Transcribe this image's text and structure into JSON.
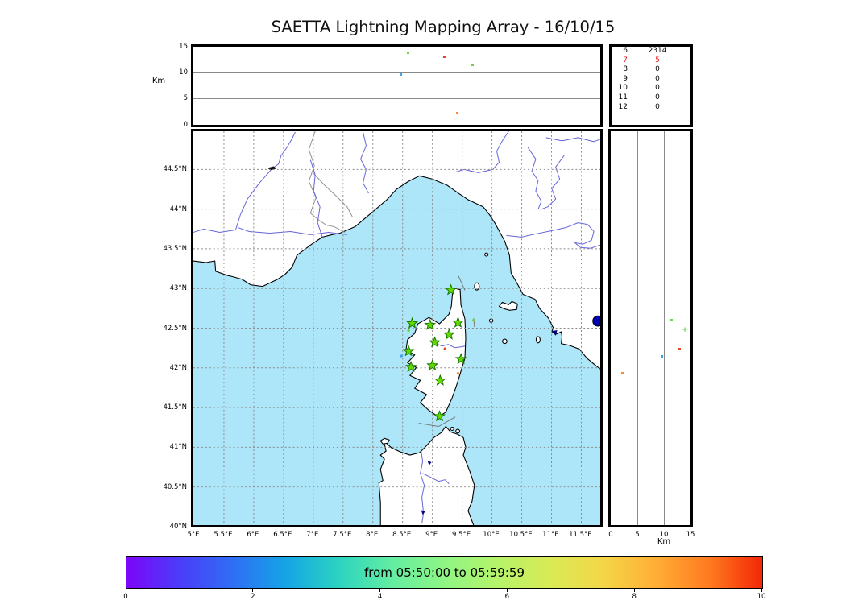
{
  "title": "SAETTA Lightning Mapping Array - 16/10/15",
  "alt_axis": {
    "label": "Km",
    "ticks": [
      0,
      5,
      10,
      15
    ],
    "max": 15,
    "gridlines": [
      5,
      10
    ]
  },
  "map_axes": {
    "lon_ticks": [
      {
        "v": 5,
        "label": "5°E"
      },
      {
        "v": 5.5,
        "label": "5.5°E"
      },
      {
        "v": 6,
        "label": "6°E"
      },
      {
        "v": 6.5,
        "label": "6.5°E"
      },
      {
        "v": 7,
        "label": "7°E"
      },
      {
        "v": 7.5,
        "label": "7.5°E"
      },
      {
        "v": 8,
        "label": "8°E"
      },
      {
        "v": 8.5,
        "label": "8.5°E"
      },
      {
        "v": 9,
        "label": "9°E"
      },
      {
        "v": 9.5,
        "label": "9.5°E"
      },
      {
        "v": 10,
        "label": "10°E"
      },
      {
        "v": 10.5,
        "label": "10.5°E"
      },
      {
        "v": 11,
        "label": "11°E"
      },
      {
        "v": 11.5,
        "label": "11.5°E"
      }
    ],
    "lat_ticks": [
      {
        "v": 40,
        "label": "40°N"
      },
      {
        "v": 40.5,
        "label": "40.5°N"
      },
      {
        "v": 41,
        "label": "41°N"
      },
      {
        "v": 41.5,
        "label": "41.5°N"
      },
      {
        "v": 42,
        "label": "42°N"
      },
      {
        "v": 42.5,
        "label": "42.5°N"
      },
      {
        "v": 43,
        "label": "43°N"
      },
      {
        "v": 43.5,
        "label": "43.5°N"
      },
      {
        "v": 44,
        "label": "44°N"
      },
      {
        "v": 44.5,
        "label": "44.5°N"
      }
    ],
    "lon_range": [
      5.0,
      11.82
    ],
    "lat_range": [
      40.02,
      44.98
    ]
  },
  "counts_panel": {
    "rows": [
      {
        "level": "6",
        "count": "2314",
        "color": "#000000"
      },
      {
        "level": "7",
        "count": "5",
        "color": "#e02020"
      },
      {
        "level": "8",
        "count": "0",
        "color": "#000000"
      },
      {
        "level": "9",
        "count": "0",
        "color": "#000000"
      },
      {
        "level": "10",
        "count": "0",
        "color": "#000000"
      },
      {
        "level": "11",
        "count": "0",
        "color": "#000000"
      },
      {
        "level": "12",
        "count": "0",
        "color": "#000000"
      }
    ]
  },
  "colorbar": {
    "label": "from 05:50:00 to 05:59:59",
    "ticks": [
      0,
      2,
      4,
      6,
      8,
      10
    ],
    "min": 0,
    "max": 10,
    "gradient": [
      "#7c06f8",
      "#4b3cfa",
      "#2f6ef4",
      "#15a4e6",
      "#2bd3c0",
      "#63eda2",
      "#8ff584",
      "#b5f36a",
      "#d9ea55",
      "#f4d648",
      "#ffae35",
      "#ff7a20",
      "#f32707"
    ]
  },
  "chart_data": {
    "type": "scatter",
    "title": "SAETTA Lightning Mapping Array - 16/10/15",
    "time_range_label": "from 05:50:00 to 05:59:59",
    "panels": [
      "altitude-vs-longitude",
      "source-counts-by-altitude",
      "map-lon-lat",
      "altitude-vs-latitude",
      "time-colorbar"
    ],
    "sources": [
      {
        "lon": 8.6,
        "lat": 42.47,
        "alt_km": 13.9,
        "color": "#6fd24f",
        "marker_right": "plus"
      },
      {
        "lon": 9.69,
        "lat": 42.6,
        "alt_km": 11.5,
        "color": "#6fd24f",
        "marker_right": "square"
      },
      {
        "lon": 9.21,
        "lat": 42.24,
        "alt_km": 13.0,
        "color": "#e8442a",
        "marker_right": "square"
      },
      {
        "lon": 8.48,
        "lat": 42.15,
        "alt_km": 9.6,
        "color": "#3fa3e8",
        "marker_right": "square"
      },
      {
        "lon": 9.43,
        "lat": 41.93,
        "alt_km": 2.2,
        "color": "#fb8a32",
        "marker_right": "square"
      }
    ],
    "stations": [
      {
        "lon": 9.31,
        "lat": 42.98
      },
      {
        "lon": 8.66,
        "lat": 42.56
      },
      {
        "lon": 8.96,
        "lat": 42.54
      },
      {
        "lon": 9.43,
        "lat": 42.57
      },
      {
        "lon": 9.28,
        "lat": 42.42
      },
      {
        "lon": 9.04,
        "lat": 42.32
      },
      {
        "lon": 8.6,
        "lat": 42.21
      },
      {
        "lon": 9.48,
        "lat": 42.11
      },
      {
        "lon": 8.64,
        "lat": 42.01
      },
      {
        "lon": 9.0,
        "lat": 42.03
      },
      {
        "lon": 9.13,
        "lat": 41.84
      },
      {
        "lon": 9.12,
        "lat": 41.39
      }
    ],
    "station_marker": {
      "shape": "star",
      "fill": "#66d800",
      "stroke": "#147800"
    },
    "large_marker": {
      "lon": 11.78,
      "lat": 42.59,
      "color": "#0000b4"
    },
    "colors": {
      "sea": "#ade6f8",
      "land": "#ffffff",
      "coast": "#000000",
      "river": "#6464d8",
      "border": "#909090",
      "grid": "#8a8a8a",
      "lake": "#000080"
    }
  }
}
